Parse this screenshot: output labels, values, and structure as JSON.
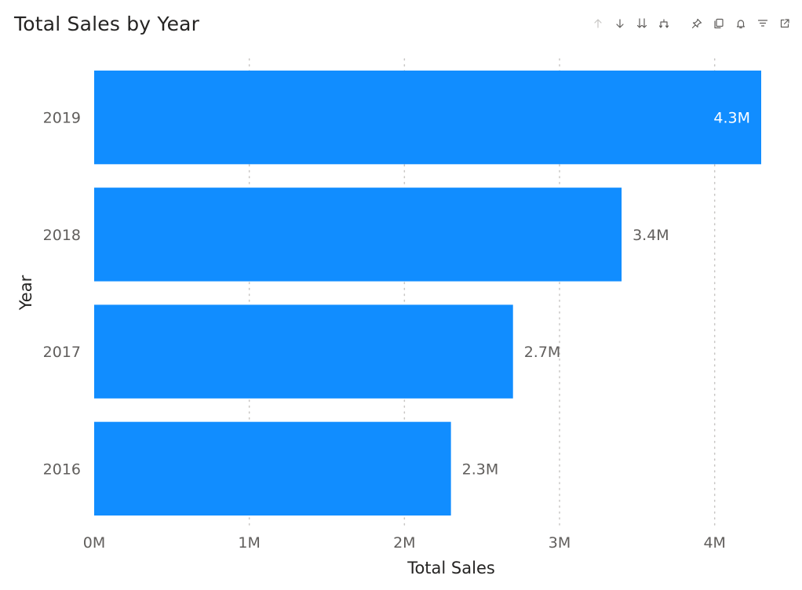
{
  "visual": {
    "title": "Total Sales by Year",
    "toolbar": {
      "left_group": [
        {
          "icon": "arrow-up-icon",
          "enabled": false
        },
        {
          "icon": "arrow-down-icon",
          "enabled": true
        },
        {
          "icon": "double-arrow-down-icon",
          "enabled": true
        },
        {
          "icon": "expand-hierarchy-icon",
          "enabled": true
        }
      ],
      "right_group": [
        {
          "icon": "pin-icon"
        },
        {
          "icon": "copy-icon"
        },
        {
          "icon": "bell-icon"
        },
        {
          "icon": "filter-icon"
        },
        {
          "icon": "focus-mode-icon"
        }
      ]
    }
  },
  "chart_data": {
    "type": "bar",
    "orientation": "horizontal",
    "categories": [
      "2019",
      "2018",
      "2017",
      "2016"
    ],
    "values": [
      4.3,
      3.4,
      2.7,
      2.3
    ],
    "data_labels": [
      "4.3M",
      "3.4M",
      "2.7M",
      "2.3M"
    ],
    "xticks": [
      0,
      1,
      2,
      3,
      4
    ],
    "xtick_labels": [
      "0M",
      "1M",
      "2M",
      "3M",
      "4M"
    ],
    "xlim": [
      0,
      4.3
    ],
    "xlabel": "Total Sales",
    "ylabel": "Year",
    "grid": "vertical dotted",
    "colors": {
      "bar": "#118DFF",
      "grid": "#c8c6c4",
      "label_inside": "#ffffff",
      "label_outside": "#605e5c"
    }
  }
}
